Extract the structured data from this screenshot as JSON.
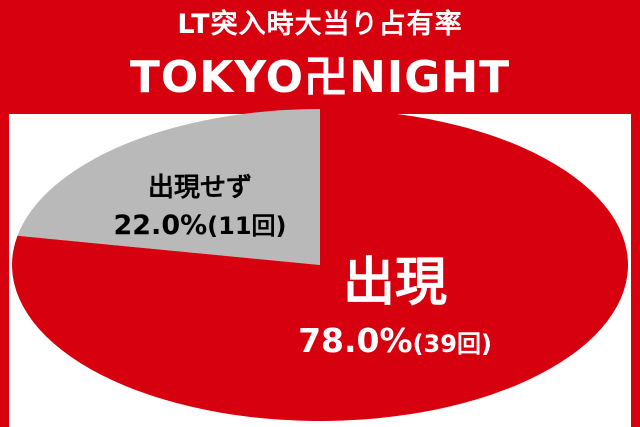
{
  "header": {
    "subtitle": "LT突入時大当り占有率",
    "title": "TOKYO卍NIGHT"
  },
  "colors": {
    "background": "#d7000f",
    "panel": "#ffffff",
    "appear": "#d7000f",
    "not_appear": "#b9b9b9",
    "label_on_red": "#ffffff",
    "label_on_gray": "#000000"
  },
  "chart_data": {
    "type": "pie",
    "title": "LT突入時大当り占有率",
    "subtitle": "TOKYO卍NIGHT",
    "slices": [
      {
        "label": "出現",
        "value": 78.0,
        "count": 39,
        "value_text": "78.0%",
        "count_text": "(39回)",
        "color": "#d7000f"
      },
      {
        "label": "出現せず",
        "value": 22.0,
        "count": 11,
        "value_text": "22.0%",
        "count_text": "(11回)",
        "color": "#b9b9b9"
      }
    ]
  }
}
